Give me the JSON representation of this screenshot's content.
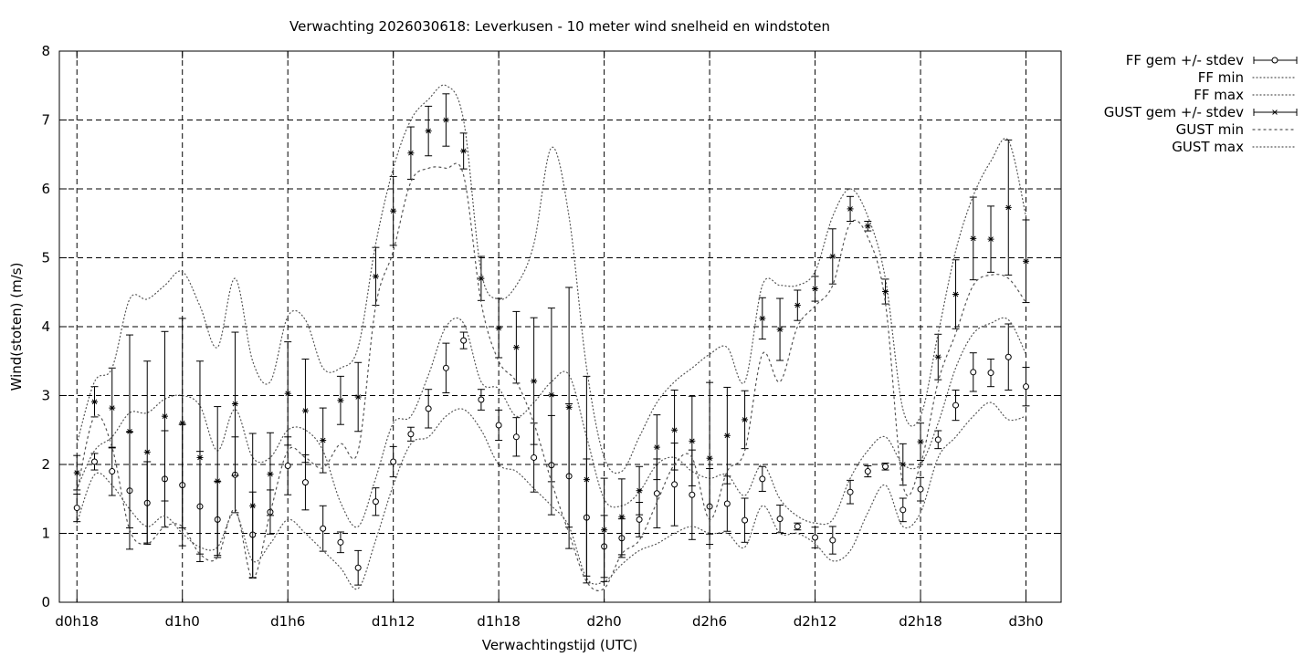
{
  "chart_data": {
    "type": "line",
    "title": "Verwachting 2026030618: Leverkusen - 10 meter wind snelheid en windstoten",
    "xlabel": "Verwachtingstijd (UTC)",
    "ylabel": "Wind(stoten) (m/s)",
    "xlim": [
      -1,
      56
    ],
    "ylim": [
      0,
      8
    ],
    "grid": true,
    "legend_position": "outside-right",
    "x_ticks": [
      {
        "x": 0,
        "label": "d0h18"
      },
      {
        "x": 6,
        "label": "d1h0"
      },
      {
        "x": 12,
        "label": "d1h6"
      },
      {
        "x": 18,
        "label": "d1h12"
      },
      {
        "x": 24,
        "label": "d1h18"
      },
      {
        "x": 30,
        "label": "d2h0"
      },
      {
        "x": 36,
        "label": "d2h6"
      },
      {
        "x": 42,
        "label": "d2h12"
      },
      {
        "x": 48,
        "label": "d2h18"
      },
      {
        "x": 54,
        "label": "d3h0"
      }
    ],
    "y_ticks": [
      0,
      1,
      2,
      3,
      4,
      5,
      6,
      7,
      8
    ],
    "x": [
      0,
      1,
      2,
      3,
      4,
      5,
      6,
      7,
      8,
      9,
      10,
      11,
      12,
      13,
      14,
      15,
      16,
      17,
      18,
      19,
      20,
      21,
      22,
      23,
      24,
      25,
      26,
      27,
      28,
      29,
      30,
      31,
      32,
      33,
      34,
      35,
      36,
      37,
      38,
      39,
      40,
      41,
      42,
      43,
      44,
      45,
      46,
      47,
      48,
      49,
      50,
      51,
      52,
      53,
      54
    ],
    "series": [
      {
        "name": "FF gem +/- stdev",
        "style": "errorbar-circle",
        "mean": [
          1.37,
          2.04,
          1.9,
          1.62,
          1.44,
          1.79,
          1.7,
          1.39,
          1.2,
          1.85,
          0.98,
          1.31,
          1.98,
          1.74,
          1.07,
          0.87,
          0.5,
          1.46,
          2.04,
          2.44,
          2.81,
          3.4,
          3.8,
          2.94,
          2.57,
          2.4,
          2.1,
          1.99,
          1.83,
          1.23,
          0.81,
          0.93,
          1.2,
          1.58,
          1.71,
          1.56,
          1.39,
          1.43,
          1.19,
          1.79,
          1.21,
          1.1,
          0.94,
          0.9,
          1.6,
          1.9,
          1.97,
          1.34,
          1.64,
          2.36,
          2.86,
          3.34,
          3.33,
          3.56,
          3.13
        ],
        "stdev": [
          0.2,
          0.12,
          0.35,
          0.85,
          0.6,
          0.7,
          0.88,
          0.8,
          0.55,
          0.55,
          0.62,
          0.32,
          0.42,
          0.4,
          0.33,
          0.15,
          0.25,
          0.2,
          0.22,
          0.1,
          0.28,
          0.36,
          0.12,
          0.15,
          0.22,
          0.28,
          0.5,
          0.72,
          1.05,
          0.85,
          0.45,
          0.28,
          0.25,
          0.5,
          0.6,
          0.65,
          0.55,
          0.4,
          0.32,
          0.18,
          0.2,
          0.05,
          0.15,
          0.2,
          0.17,
          0.08,
          0.05,
          0.17,
          0.17,
          0.13,
          0.22,
          0.28,
          0.2,
          0.48,
          0.28
        ]
      },
      {
        "name": "FF min",
        "style": "dotted",
        "values": [
          1.15,
          1.85,
          1.7,
          1.35,
          1.1,
          1.25,
          1.0,
          0.8,
          0.8,
          1.3,
          0.6,
          0.85,
          1.2,
          1.0,
          0.75,
          0.5,
          0.2,
          0.9,
          1.7,
          2.3,
          2.4,
          2.7,
          2.8,
          2.5,
          2.0,
          1.9,
          1.65,
          1.4,
          1.1,
          0.35,
          0.3,
          0.55,
          0.75,
          0.85,
          1.0,
          1.1,
          1.0,
          1.0,
          0.8,
          1.4,
          1.0,
          1.0,
          0.85,
          0.6,
          0.75,
          1.3,
          1.7,
          1.1,
          1.3,
          2.1,
          2.4,
          2.7,
          2.9,
          2.65,
          2.7
        ]
      },
      {
        "name": "FF max",
        "style": "dotted",
        "values": [
          1.65,
          2.2,
          2.4,
          2.75,
          2.75,
          2.95,
          3.0,
          2.85,
          2.2,
          2.8,
          2.1,
          2.1,
          2.5,
          2.5,
          2.2,
          1.45,
          1.1,
          1.8,
          2.6,
          2.7,
          3.3,
          4.0,
          4.05,
          3.2,
          3.1,
          2.7,
          2.9,
          3.2,
          3.3,
          2.4,
          1.5,
          1.4,
          1.6,
          2.0,
          2.1,
          1.9,
          1.8,
          1.85,
          1.55,
          2.0,
          1.5,
          1.25,
          1.15,
          1.2,
          1.8,
          2.2,
          2.4,
          2.0,
          2.0,
          2.6,
          3.4,
          3.9,
          4.05,
          4.1,
          3.6
        ]
      },
      {
        "name": "GUST gem +/- stdev",
        "style": "errorbar-star",
        "mean": [
          1.88,
          2.91,
          2.82,
          2.48,
          2.18,
          2.7,
          2.6,
          2.1,
          1.76,
          2.88,
          1.4,
          1.86,
          3.03,
          2.78,
          2.35,
          2.93,
          2.98,
          4.73,
          5.68,
          6.52,
          6.84,
          7.0,
          6.55,
          4.7,
          3.98,
          3.7,
          3.21,
          3.01,
          2.83,
          1.78,
          1.05,
          1.24,
          1.62,
          2.25,
          2.5,
          2.34,
          2.09,
          2.42,
          2.65,
          4.12,
          3.96,
          4.31,
          4.55,
          5.02,
          5.71,
          5.46,
          4.51,
          2.0,
          2.33,
          3.56,
          4.47,
          5.28,
          5.27,
          5.73,
          4.95
        ],
        "stdev": [
          0.25,
          0.22,
          0.58,
          1.4,
          1.32,
          1.23,
          1.52,
          1.4,
          1.08,
          1.04,
          1.05,
          0.6,
          0.75,
          0.75,
          0.47,
          0.35,
          0.5,
          0.42,
          0.5,
          0.38,
          0.36,
          0.38,
          0.26,
          0.32,
          0.43,
          0.52,
          0.92,
          1.26,
          1.74,
          1.5,
          0.75,
          0.55,
          0.35,
          0.47,
          0.58,
          0.65,
          1.1,
          0.7,
          0.42,
          0.3,
          0.45,
          0.22,
          0.18,
          0.4,
          0.18,
          0.07,
          0.18,
          0.3,
          0.27,
          0.33,
          0.5,
          0.6,
          0.48,
          0.98,
          0.6
        ]
      },
      {
        "name": "GUST min",
        "style": "dotted",
        "values": [
          1.6,
          2.7,
          2.25,
          1.05,
          0.85,
          1.1,
          1.1,
          0.7,
          0.65,
          1.35,
          0.35,
          1.3,
          2.2,
          2.1,
          1.95,
          2.3,
          2.2,
          4.3,
          5.1,
          6.1,
          6.3,
          6.3,
          6.2,
          4.35,
          3.5,
          3.2,
          2.6,
          1.75,
          1.0,
          0.3,
          0.2,
          0.7,
          0.9,
          1.45,
          2.0,
          2.1,
          1.2,
          1.9,
          2.2,
          3.6,
          3.2,
          4.0,
          4.3,
          4.6,
          5.5,
          5.3,
          4.35,
          1.7,
          2.0,
          3.2,
          3.9,
          4.6,
          4.75,
          4.7,
          4.35
        ]
      },
      {
        "name": "GUST max",
        "style": "dotted",
        "values": [
          2.3,
          3.2,
          3.4,
          4.4,
          4.4,
          4.6,
          4.8,
          4.3,
          3.7,
          4.7,
          3.5,
          3.2,
          4.15,
          4.1,
          3.4,
          3.4,
          3.7,
          5.2,
          6.3,
          7.0,
          7.3,
          7.5,
          7.0,
          4.8,
          4.4,
          4.6,
          5.2,
          6.6,
          5.6,
          3.4,
          2.1,
          1.9,
          2.4,
          2.9,
          3.2,
          3.4,
          3.6,
          3.7,
          3.2,
          4.6,
          4.6,
          4.6,
          4.8,
          5.6,
          6.0,
          5.6,
          4.7,
          2.8,
          2.7,
          3.9,
          5.1,
          5.9,
          6.4,
          6.7,
          5.6
        ]
      }
    ]
  }
}
